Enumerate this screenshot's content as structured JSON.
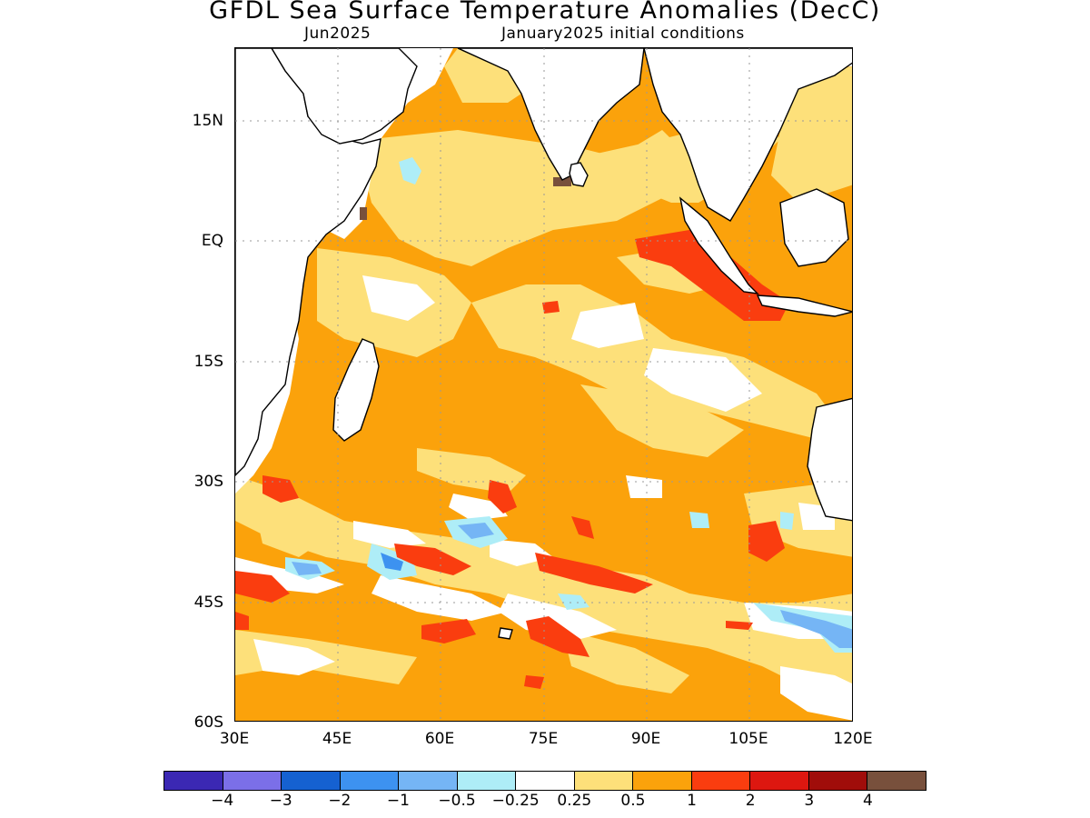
{
  "title": "GFDL Sea Surface Temperature Anomalies (DecC)",
  "subtitle_left": "Jun2025",
  "subtitle_right": "January2025 initial conditions",
  "lat_labels": [
    "15N",
    "EQ",
    "15S",
    "30S",
    "45S",
    "60S"
  ],
  "lon_labels": [
    "30E",
    "45E",
    "60E",
    "75E",
    "90E",
    "105E",
    "120E"
  ],
  "colorbar": {
    "colors": [
      "#3b28b3",
      "#7b6fe8",
      "#1561d1",
      "#3d92f0",
      "#75b5f5",
      "#aeedf7",
      "#ffffff",
      "#fde07a",
      "#fba20b",
      "#fa3d0f",
      "#dd1710",
      "#a00d0a",
      "#78503c"
    ],
    "labels": [
      "−4",
      "−3",
      "−2",
      "−1",
      "−0.5",
      "−0.25",
      "0.25",
      "0.5",
      "1",
      "2",
      "3",
      "4"
    ]
  },
  "chart_data": {
    "type": "heatmap",
    "title": "GFDL Sea Surface Temperature Anomalies (DecC)",
    "valid_month": "Jun2025",
    "initial_conditions": "January2025 initial conditions",
    "region": "Indian Ocean",
    "lon_range": [
      30,
      120
    ],
    "lat_range": [
      -60,
      24
    ],
    "units": "DecC",
    "contour_levels": [
      -4,
      -3,
      -2,
      -1,
      -0.5,
      -0.25,
      0.25,
      0.5,
      1,
      2,
      3,
      4
    ],
    "anomaly_features": [
      {
        "region": "Equatorial eastern Indian Ocean off Sumatra",
        "value_range": [
          1,
          2
        ]
      },
      {
        "region": "Bay of Bengal and Arabian Sea",
        "value_range": [
          0.25,
          0.5
        ]
      },
      {
        "region": "Southern Indian Ocean 25S-40S",
        "value_range": [
          0.5,
          1
        ]
      },
      {
        "region": "Southern Indian Ocean 40S-45S bands",
        "value_range": [
          1,
          2
        ]
      },
      {
        "region": "Southwest of Australia 45S-50S",
        "value_range": [
          -1,
          -0.25
        ]
      },
      {
        "region": "Central south Indian Ocean 35S-42S",
        "value_range": [
          -1,
          -0.25
        ]
      }
    ]
  }
}
